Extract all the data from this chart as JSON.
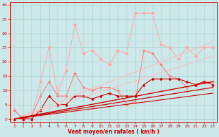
{
  "title": "",
  "xlabel": "Vent moyen/en rafales ( km/h )",
  "ylabel": "",
  "background_color": "#cce8e8",
  "grid_color": "#aacccc",
  "xlim": [
    -0.5,
    23.5
  ],
  "ylim": [
    -1,
    41
  ],
  "yticks": [
    0,
    5,
    10,
    15,
    20,
    25,
    30,
    35,
    40
  ],
  "xticks": [
    0,
    1,
    2,
    3,
    4,
    5,
    6,
    7,
    8,
    9,
    10,
    11,
    12,
    13,
    14,
    15,
    16,
    17,
    18,
    19,
    20,
    21,
    22,
    23
  ],
  "series": [
    {
      "x": [
        0,
        1,
        2,
        3,
        4,
        5,
        6,
        7,
        8,
        9,
        10,
        11,
        12,
        13,
        14,
        15,
        16,
        17,
        18,
        19,
        20,
        21,
        22,
        23
      ],
      "y": [
        3,
        0,
        1,
        13,
        25,
        9,
        17,
        33,
        23,
        24,
        21,
        19,
        24,
        23,
        37,
        37,
        37,
        26,
        25,
        21,
        25,
        22,
        25,
        25
      ],
      "color": "#ffaaaa",
      "marker": "D",
      "linewidth": 0.7,
      "markersize": 2,
      "linestyle": "-"
    },
    {
      "x": [
        0,
        1,
        2,
        3,
        4,
        5,
        6,
        7,
        8,
        9,
        10,
        11,
        12,
        13,
        14,
        15,
        16,
        17,
        18,
        19,
        20,
        21,
        22,
        23
      ],
      "y": [
        3,
        0,
        1,
        8,
        13,
        8,
        8,
        16,
        11,
        10,
        11,
        11,
        10,
        5,
        6,
        24,
        23,
        19,
        15,
        14,
        11,
        12,
        13,
        13
      ],
      "color": "#ff7777",
      "marker": "+",
      "linewidth": 0.7,
      "markersize": 3,
      "linestyle": "-"
    },
    {
      "x": [
        0,
        1,
        2,
        3,
        4,
        5,
        6,
        7,
        8,
        9,
        10,
        11,
        12,
        13,
        14,
        15,
        16,
        17,
        18,
        19,
        20,
        21,
        22,
        23
      ],
      "y": [
        0,
        0,
        0,
        3,
        8,
        5,
        5,
        8,
        8,
        7,
        8,
        9,
        8,
        8,
        8,
        12,
        14,
        14,
        14,
        14,
        13,
        12,
        13,
        12
      ],
      "color": "#cc0000",
      "marker": "^",
      "linewidth": 0.8,
      "markersize": 2,
      "linestyle": "-"
    },
    {
      "x": [
        0,
        23
      ],
      "y": [
        0,
        27
      ],
      "color": "#ffbbbb",
      "marker": null,
      "linewidth": 0.8,
      "markersize": 0,
      "linestyle": "-"
    },
    {
      "x": [
        0,
        23
      ],
      "y": [
        0,
        22
      ],
      "color": "#ffbbbb",
      "marker": null,
      "linewidth": 0.7,
      "markersize": 0,
      "linestyle": "-"
    },
    {
      "x": [
        0,
        23
      ],
      "y": [
        0,
        13
      ],
      "color": "#cc0000",
      "marker": null,
      "linewidth": 1.0,
      "markersize": 0,
      "linestyle": "-"
    },
    {
      "x": [
        0,
        23
      ],
      "y": [
        0,
        11
      ],
      "color": "#cc0000",
      "marker": null,
      "linewidth": 0.9,
      "markersize": 0,
      "linestyle": "-"
    },
    {
      "x": [
        0,
        23
      ],
      "y": [
        0,
        9
      ],
      "color": "#cc0000",
      "marker": null,
      "linewidth": 0.8,
      "markersize": 0,
      "linestyle": "-"
    }
  ]
}
